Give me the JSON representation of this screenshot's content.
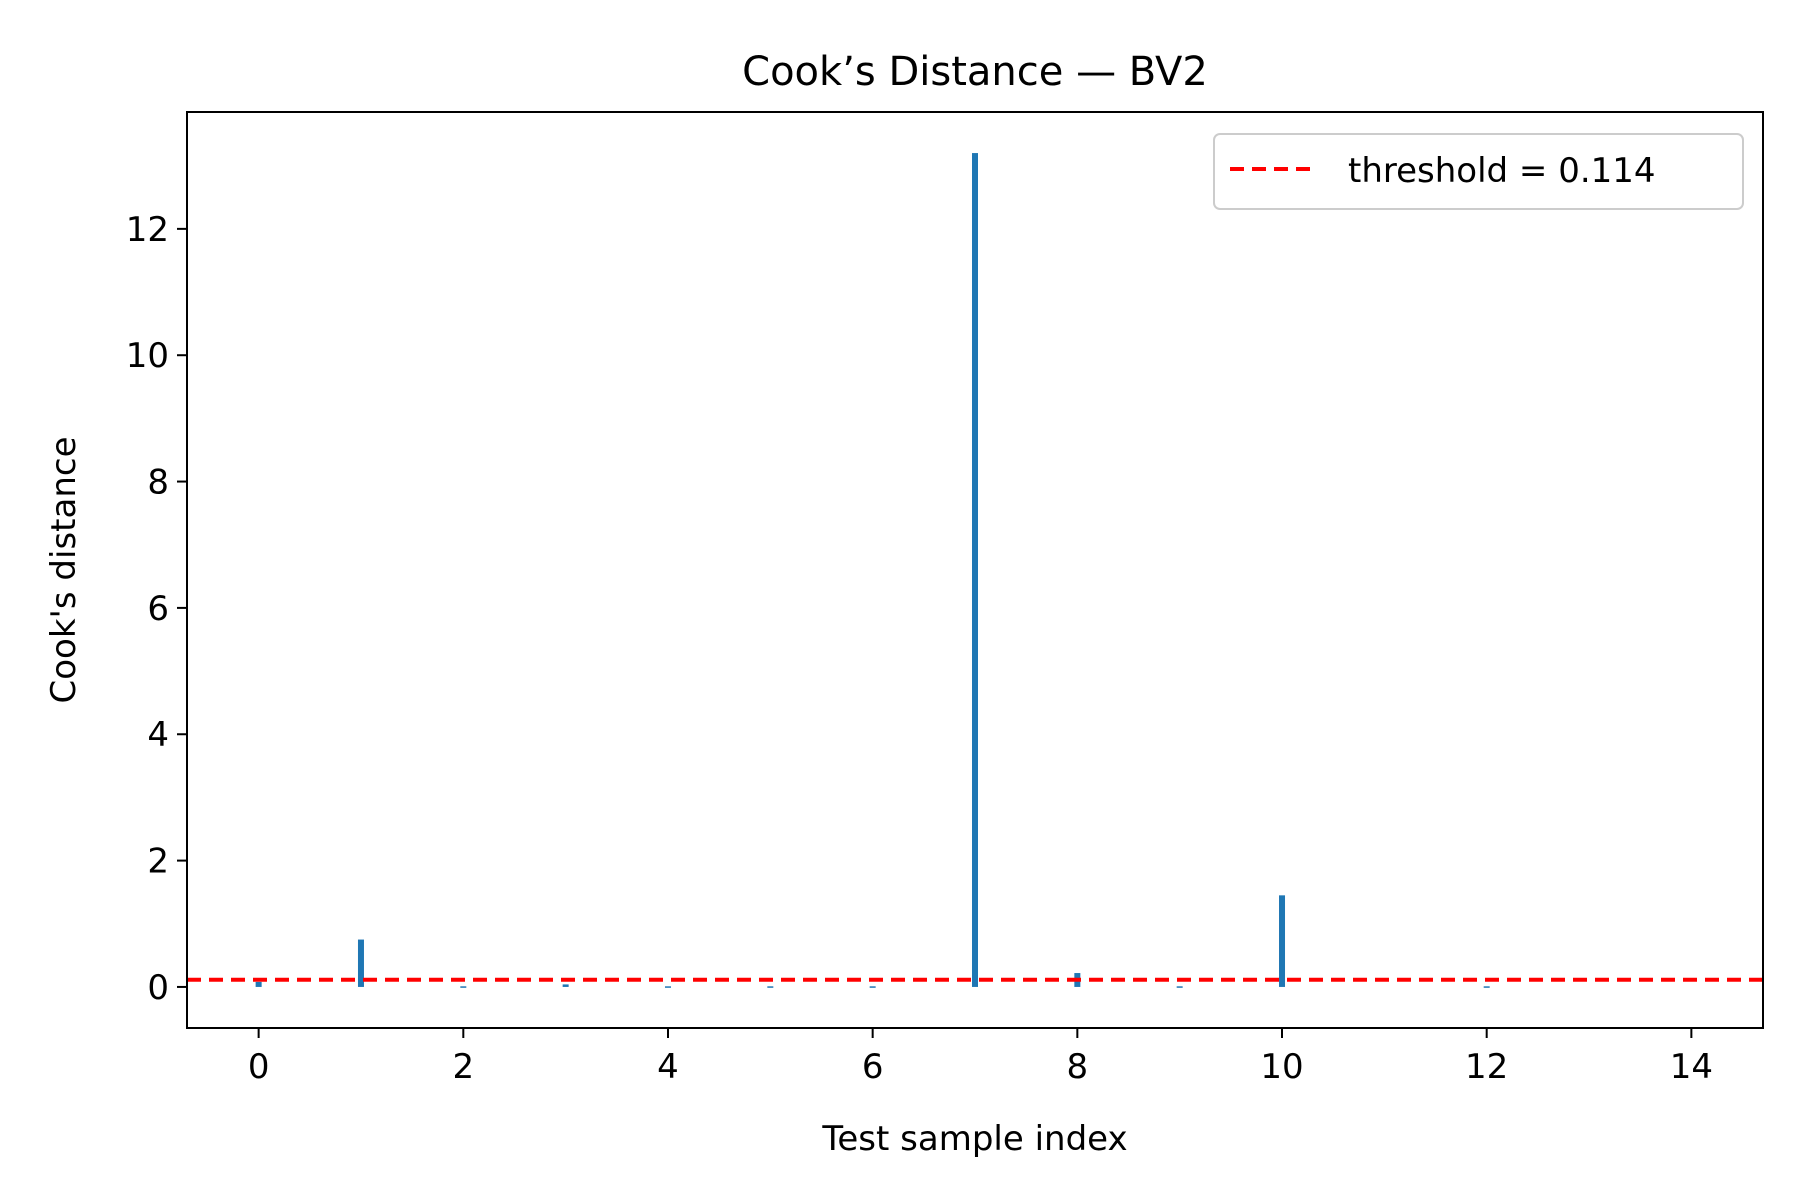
{
  "chart_data": {
    "type": "bar",
    "title": "Cook’s Distance — BV2",
    "xlabel": "Test sample index",
    "ylabel": "Cook's distance",
    "x": [
      0,
      1,
      2,
      3,
      4,
      5,
      6,
      7,
      8,
      9,
      10,
      11,
      12,
      13,
      14
    ],
    "values": [
      0.08,
      0.75,
      0.01,
      0.04,
      0.01,
      0.01,
      0.01,
      13.2,
      0.22,
      0.01,
      1.45,
      0.0,
      0.01,
      0.0,
      0.0
    ],
    "xlim": [
      -0.7,
      14.7
    ],
    "ylim": [
      -0.65,
      13.85
    ],
    "xticks": [
      0,
      2,
      4,
      6,
      8,
      10,
      12,
      14
    ],
    "yticks": [
      0,
      2,
      4,
      6,
      8,
      10,
      12
    ],
    "threshold": {
      "value": 0.114,
      "label": "threshold = 0.114",
      "color": "#ff0000",
      "style": "dashed"
    },
    "bar_color": "#1f77b4",
    "legend_position": "top-right",
    "grid": false
  }
}
